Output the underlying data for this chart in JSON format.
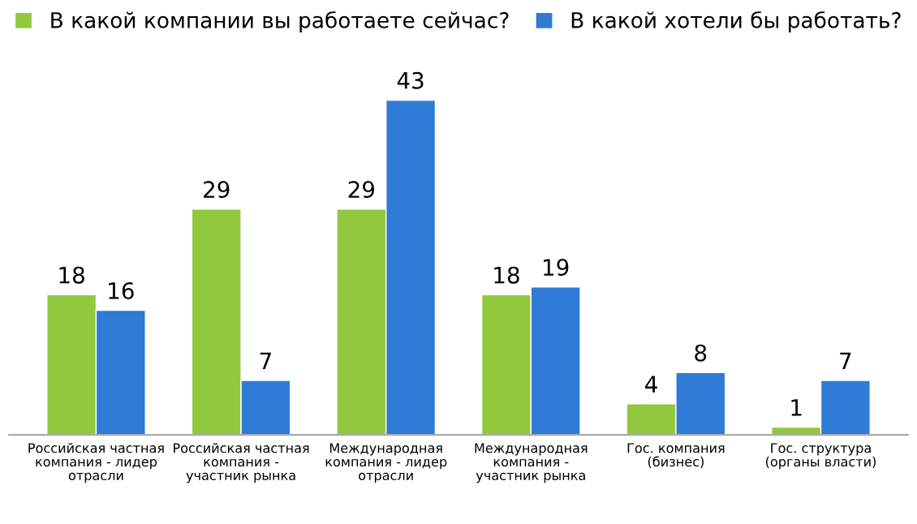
{
  "chart_data": {
    "type": "bar",
    "categories": [
      "Российская частная компания - лидер отрасли",
      "Российская частная компания - участник рынка",
      "Международная компания - лидер отрасли",
      "Международная компания - участник рынка",
      "Гос. компания (бизнес)",
      "Гос. структура (органы власти)"
    ],
    "series": [
      {
        "name": "В какой компании вы работаете сейчас?",
        "color": "#92c83e",
        "values": [
          18,
          29,
          29,
          18,
          4,
          1
        ]
      },
      {
        "name": "В какой хотели бы работать?",
        "color": "#2f7bd6",
        "values": [
          16,
          7,
          43,
          19,
          8,
          7
        ]
      }
    ],
    "data_labels": true,
    "tick_labels": "x",
    "legend": "top"
  }
}
